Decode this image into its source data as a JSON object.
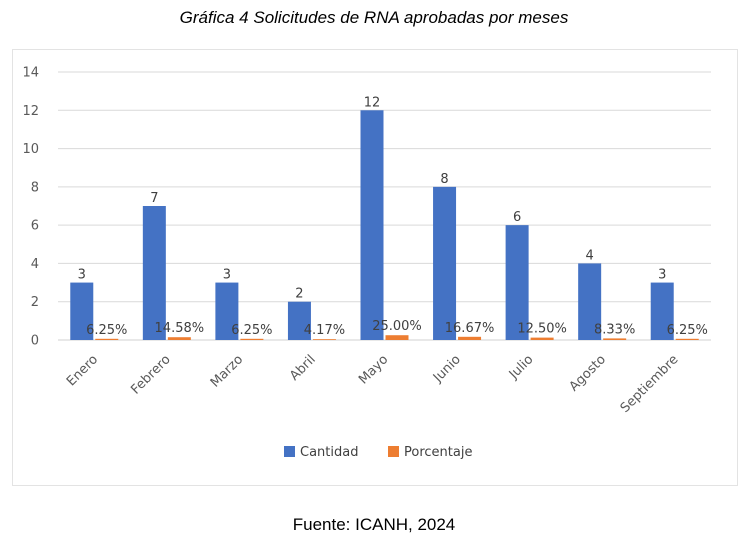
{
  "title": "Gráfica 4 Solicitudes de RNA aprobadas por meses",
  "source": "Fuente: ICANH, 2024",
  "colors": {
    "cantidad": "#4472C4",
    "porcentaje": "#ED7D31",
    "grid": "#d9d9d9"
  },
  "chart_data": {
    "type": "bar",
    "categories": [
      "Enero",
      "Febrero",
      "Marzo",
      "Abril",
      "Mayo",
      "Junio",
      "Julio",
      "Agosto",
      "Septiembre"
    ],
    "series": [
      {
        "name": "Cantidad",
        "values": [
          3,
          7,
          3,
          2,
          12,
          8,
          6,
          4,
          3
        ],
        "labels": [
          "3",
          "7",
          "3",
          "2",
          "12",
          "8",
          "6",
          "4",
          "3"
        ]
      },
      {
        "name": "Porcentaje",
        "values": [
          0.0625,
          0.1458,
          0.0625,
          0.0417,
          0.25,
          0.1667,
          0.125,
          0.0833,
          0.0625
        ],
        "labels": [
          "6.25%",
          "14.58%",
          "6.25%",
          "4.17%",
          "25.00%",
          "16.67%",
          "12.50%",
          "8.33%",
          "6.25%"
        ]
      }
    ],
    "yticks": [
      "0",
      "2",
      "4",
      "6",
      "8",
      "10",
      "12",
      "14"
    ],
    "ylim": [
      0,
      14
    ],
    "grid": true,
    "legend": "bottom"
  }
}
